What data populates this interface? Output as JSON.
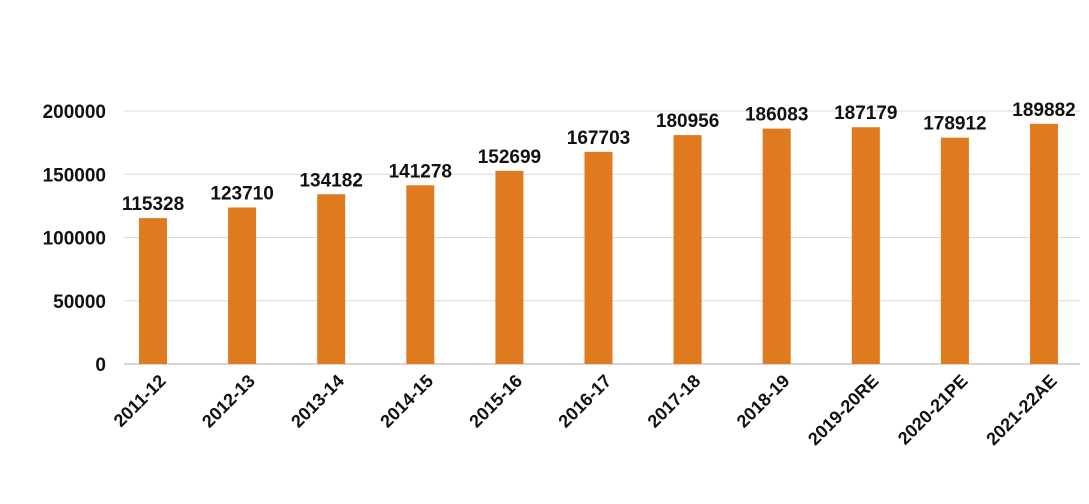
{
  "chart_data": {
    "type": "bar",
    "categories": [
      "2011-12",
      "2012-13",
      "2013-14",
      "2014-15",
      "2015-16",
      "2016-17",
      "2017-18",
      "2018-19",
      "2019-20RE",
      "2020-21PE",
      "2021-22AE"
    ],
    "values": [
      115328,
      123710,
      134182,
      141278,
      152699,
      167703,
      180956,
      186083,
      187179,
      178912,
      189882
    ],
    "data_labels": [
      "115328",
      "123710",
      "134182",
      "141278",
      "152699",
      "167703",
      "180956",
      "186083",
      "187179",
      "178912",
      "189882"
    ],
    "y_ticks": [
      0,
      50000,
      100000,
      150000,
      200000
    ],
    "y_tick_labels": [
      "0",
      "50000",
      "100000",
      "150000",
      "200000"
    ],
    "ylim": [
      0,
      200000
    ],
    "grid": true,
    "legend": "none",
    "colors": {
      "bar": "#E07A1F",
      "grid": "#d9d9d9",
      "text": "#111111"
    }
  }
}
